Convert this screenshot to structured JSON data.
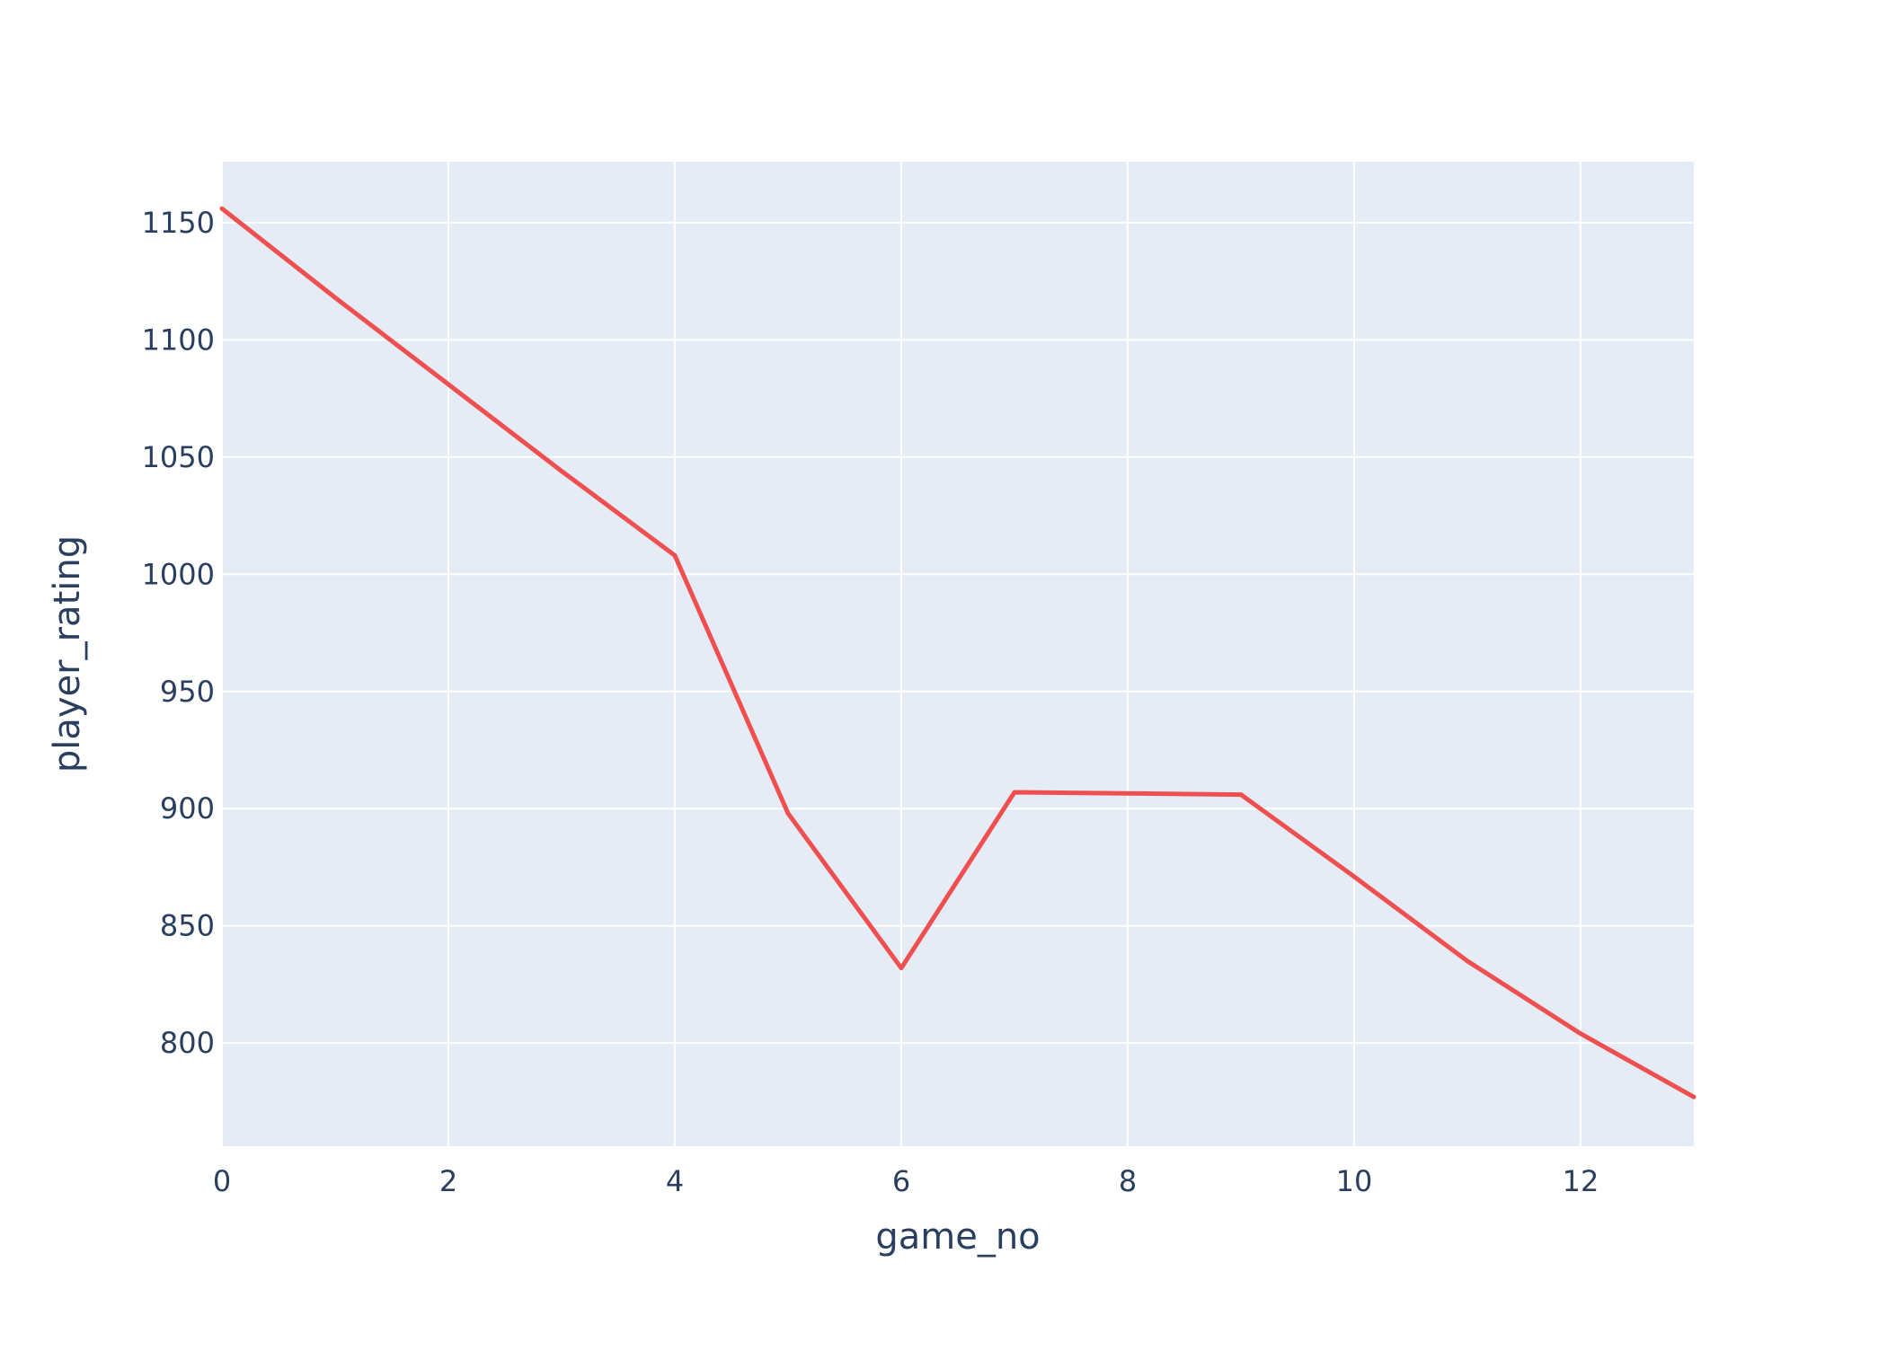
{
  "chart_data": {
    "type": "line",
    "title": "",
    "xlabel": "game_no",
    "ylabel": "player_rating",
    "xlim": [
      0,
      13
    ],
    "ylim": [
      756,
      1176
    ],
    "x_ticks": [
      0,
      2,
      4,
      6,
      8,
      10,
      12
    ],
    "y_ticks": [
      800,
      850,
      900,
      950,
      1000,
      1050,
      1100,
      1150
    ],
    "grid": true,
    "legend": "none",
    "series": [
      {
        "color": "#ef4f4f",
        "x": [
          0,
          1,
          2,
          3,
          4,
          5,
          6,
          7,
          8,
          9,
          10,
          11,
          12,
          13
        ],
        "y": [
          1156,
          1118,
          1081,
          1044,
          1008,
          898,
          832,
          907,
          906.5,
          906,
          871,
          835,
          804,
          777
        ]
      }
    ]
  },
  "colors": {
    "plot_background": "#e5ecf6",
    "grid": "#ffffff",
    "text": "#2a3f5f"
  }
}
